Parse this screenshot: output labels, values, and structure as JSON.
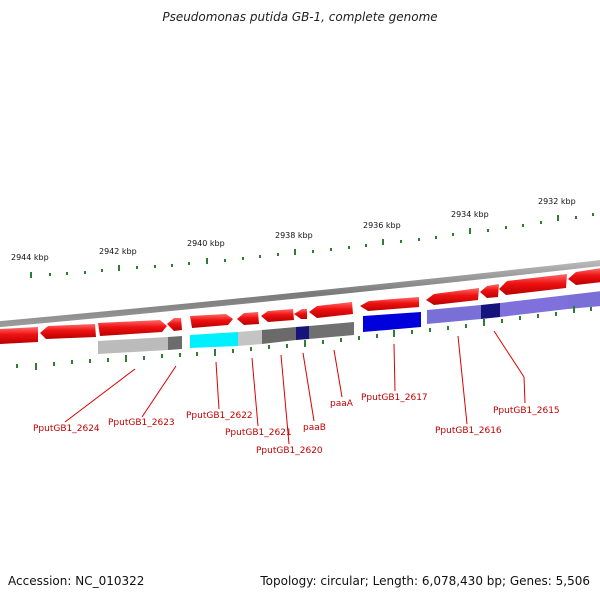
{
  "title": "Pseudomonas putida GB-1, complete genome",
  "footer": {
    "accession": "Accession: NC_010322",
    "summary": "Topology: circular; Length: 6,078,430 bp; Genes: 5,506"
  },
  "scale_labels": [
    "2944 kbp",
    "2942 kbp",
    "2940 kbp",
    "2938 kbp",
    "2936 kbp",
    "2934 kbp",
    "2932 kbp"
  ],
  "gene_labels": [
    "PputGB1_2624",
    "PputGB1_2623",
    "PputGB1_2622",
    "PputGB1_2621",
    "PputGB1_2620",
    "paaB",
    "paaA",
    "PputGB1_2617",
    "PputGB1_2616",
    "PputGB1_2615"
  ],
  "colors": {
    "forward_gene": "#ee1111",
    "backbone": "#8a8a8a",
    "tick": "#2e7d32",
    "label": "#c00000",
    "blast_cyan": "#00f0ff",
    "blast_blue": "#0000dd",
    "blast_periwinkle": "#7a6fd6",
    "blast_navy": "#14147a",
    "blast_gray_light": "#bbbbbb",
    "blast_gray_dark": "#6c6c6c"
  }
}
